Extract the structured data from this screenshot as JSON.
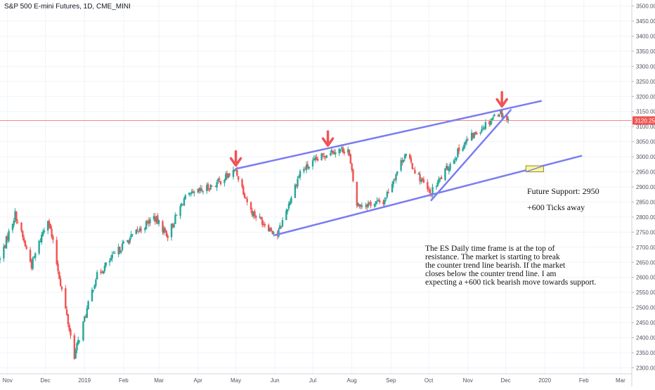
{
  "header": {
    "symbol_title": "S&P 500 E-mini Futures, 1D, CME_MINI"
  },
  "colors": {
    "up_candle": "#26a69a",
    "down_candle": "#ef5350",
    "trend_line": "#7b7df2",
    "arrow": "#f05458",
    "price_line": "#f28b7d",
    "price_tag": "#ef5350",
    "box_fill": "#fff59d",
    "box_stroke": "#8a8a30"
  },
  "annotations": {
    "future_support": "Future Support: 2950",
    "ticks_away": "+600 Ticks away",
    "analysis_lines": [
      "The ES Daily time frame is at the top of",
      "resistance. The market is starting to break",
      "the counter trend line bearish. If the market",
      "closes below the counter trend line. I am",
      "expecting a +600 tick bearish move towards support."
    ]
  },
  "chart_data": {
    "type": "candlestick",
    "title": "S&P 500 E-mini Futures, 1D, CME_MINI",
    "last_price": "3120.25",
    "y_axis": {
      "range": [
        2280,
        3520
      ],
      "ticks": [
        "3500.00",
        "3450.00",
        "3400.00",
        "3350.00",
        "3300.00",
        "3250.00",
        "3200.00",
        "3150.00",
        "3100.00",
        "3050.00",
        "3000.00",
        "2950.00",
        "2900.00",
        "2850.00",
        "2800.00",
        "2750.00",
        "2700.00",
        "2650.00",
        "2600.00",
        "2550.00",
        "2500.00",
        "2450.00",
        "2400.00",
        "2350.00",
        "2300.00"
      ]
    },
    "x_axis": {
      "range": [
        "2018-10-26",
        "2020-03-10"
      ],
      "ticks": [
        {
          "label": "Nov",
          "date": "2018-11-01"
        },
        {
          "label": "Dec",
          "date": "2018-12-01"
        },
        {
          "label": "2019",
          "date": "2019-01-01"
        },
        {
          "label": "Feb",
          "date": "2019-02-01"
        },
        {
          "label": "Mar",
          "date": "2019-03-01"
        },
        {
          "label": "Apr",
          "date": "2019-04-01"
        },
        {
          "label": "May",
          "date": "2019-05-01"
        },
        {
          "label": "Jun",
          "date": "2019-06-01"
        },
        {
          "label": "Jul",
          "date": "2019-07-01"
        },
        {
          "label": "Aug",
          "date": "2019-08-01"
        },
        {
          "label": "Sep",
          "date": "2019-09-01"
        },
        {
          "label": "Oct",
          "date": "2019-10-01"
        },
        {
          "label": "Nov",
          "date": "2019-11-01"
        },
        {
          "label": "Dec",
          "date": "2019-12-01"
        },
        {
          "label": "2020",
          "date": "2020-01-01"
        },
        {
          "label": "Feb",
          "date": "2020-02-01"
        },
        {
          "label": "Mar",
          "date": "2020-03-01"
        }
      ]
    },
    "price_path": [
      [
        "2018-10-26",
        2660
      ],
      [
        "2018-11-07",
        2810
      ],
      [
        "2018-11-20",
        2640
      ],
      [
        "2018-12-03",
        2800
      ],
      [
        "2018-12-24",
        2340
      ],
      [
        "2019-01-10",
        2600
      ],
      [
        "2019-02-01",
        2710
      ],
      [
        "2019-02-25",
        2800
      ],
      [
        "2019-03-08",
        2740
      ],
      [
        "2019-03-21",
        2860
      ],
      [
        "2019-04-15",
        2910
      ],
      [
        "2019-05-01",
        2955
      ],
      [
        "2019-05-13",
        2820
      ],
      [
        "2019-06-03",
        2740
      ],
      [
        "2019-06-21",
        2950
      ],
      [
        "2019-07-15",
        3020
      ],
      [
        "2019-07-29",
        3025
      ],
      [
        "2019-08-05",
        2840
      ],
      [
        "2019-08-26",
        2850
      ],
      [
        "2019-09-12",
        3010
      ],
      [
        "2019-10-02",
        2875
      ],
      [
        "2019-10-28",
        3040
      ],
      [
        "2019-11-26",
        3150
      ],
      [
        "2019-12-03",
        3120
      ]
    ],
    "trend_lines": [
      {
        "name": "upper-resistance",
        "from": [
          "2019-05-01",
          2960
        ],
        "to": [
          "2019-12-29",
          3185
        ]
      },
      {
        "name": "lower-support",
        "from": [
          "2019-06-01",
          2740
        ],
        "to": [
          "2020-01-30",
          3003
        ]
      },
      {
        "name": "counter-trend",
        "from": [
          "2019-10-03",
          2856
        ],
        "to": [
          "2019-12-05",
          3155
        ]
      }
    ],
    "arrows": [
      {
        "date": "2019-05-01",
        "price": 2962
      },
      {
        "date": "2019-07-13",
        "price": 3028
      },
      {
        "date": "2019-11-28",
        "price": 3158
      }
    ],
    "target_box": {
      "from": "2019-12-17",
      "to": "2019-12-31",
      "price_low": 2950,
      "price_high": 2970
    }
  }
}
